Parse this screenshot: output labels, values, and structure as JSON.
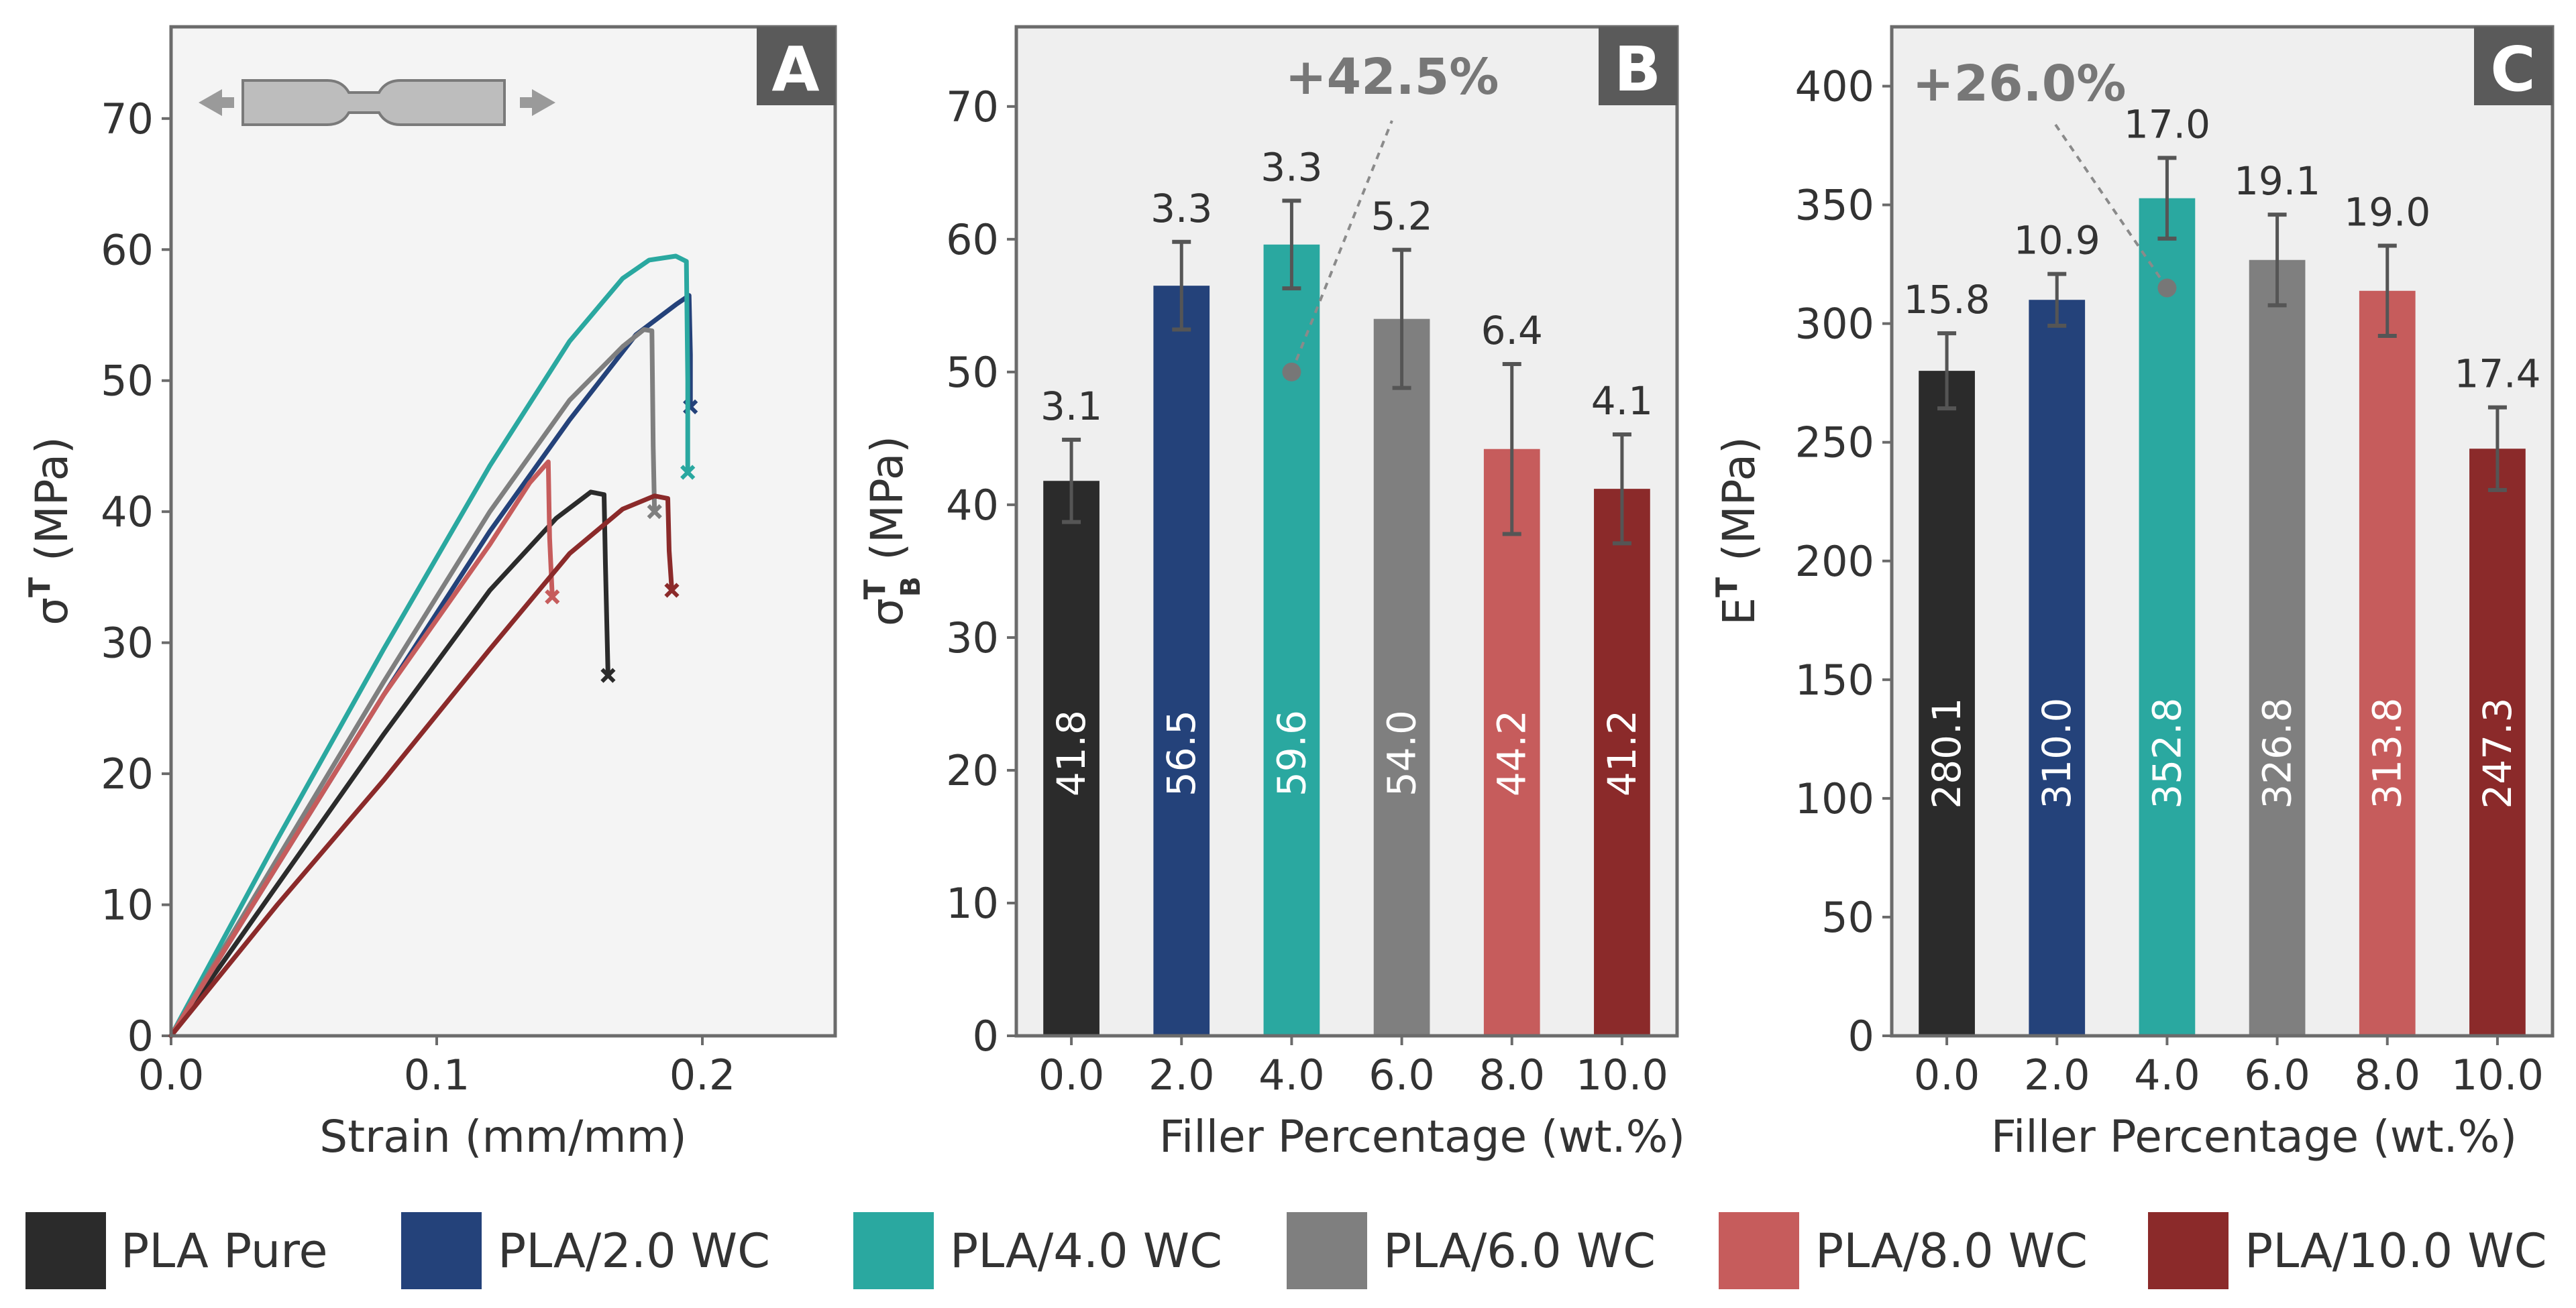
{
  "colors": {
    "pla_pure": "#2b2b2b",
    "pla_2": "#24427a",
    "pla_4": "#2aa8a0",
    "pla_6": "#7f7f7f",
    "pla_8": "#c65c5c",
    "pla_10": "#8b2a2a",
    "panel_bg_a": "#f4f4f4",
    "panel_bg_bc": "#efefef",
    "axis": "#6b6b6b",
    "text": "#333333",
    "annotation": "#777777"
  },
  "legend": [
    {
      "label": "PLA Pure",
      "color_key": "pla_pure"
    },
    {
      "label": "PLA/2.0 WC",
      "color_key": "pla_2"
    },
    {
      "label": "PLA/4.0 WC",
      "color_key": "pla_4"
    },
    {
      "label": "PLA/6.0 WC",
      "color_key": "pla_6"
    },
    {
      "label": "PLA/8.0 WC",
      "color_key": "pla_8"
    },
    {
      "label": "PLA/10.0 WC",
      "color_key": "pla_10"
    }
  ],
  "chart_data": [
    {
      "panel_label": "A",
      "type": "line",
      "xlabel": "Strain (mm/mm)",
      "ylabel_main": "σ",
      "ylabel_sup": "T",
      "ylabel_sub": "",
      "ylabel_unit": "(MPa)",
      "xlim": [
        0,
        0.25
      ],
      "ylim": [
        0,
        77
      ],
      "xticks": [
        0.0,
        0.1,
        0.2
      ],
      "xtick_labels": [
        "0.0",
        "0.1",
        "0.2"
      ],
      "yticks": [
        0,
        10,
        20,
        30,
        40,
        50,
        60,
        70
      ],
      "ytick_labels": [
        "0",
        "10",
        "20",
        "30",
        "40",
        "50",
        "60",
        "70"
      ],
      "series": [
        {
          "color_key": "pla_pure",
          "points": [
            [
              0,
              0
            ],
            [
              0.04,
              11.5
            ],
            [
              0.08,
              23
            ],
            [
              0.12,
              34
            ],
            [
              0.145,
              39.5
            ],
            [
              0.158,
              41.5
            ],
            [
              0.163,
              41.3
            ],
            [
              0.1635,
              36
            ],
            [
              0.1645,
              27.5
            ]
          ],
          "break": [
            0.1645,
            27.5
          ]
        },
        {
          "color_key": "pla_2",
          "points": [
            [
              0,
              0
            ],
            [
              0.04,
              13
            ],
            [
              0.08,
              26
            ],
            [
              0.12,
              38.5
            ],
            [
              0.15,
              47
            ],
            [
              0.175,
              53.5
            ],
            [
              0.19,
              55.8
            ],
            [
              0.195,
              56.5
            ],
            [
              0.1955,
              52
            ],
            [
              0.1955,
              48
            ]
          ],
          "break": [
            0.1955,
            48
          ]
        },
        {
          "color_key": "pla_4",
          "points": [
            [
              0,
              0
            ],
            [
              0.04,
              15
            ],
            [
              0.08,
              29.5
            ],
            [
              0.12,
              43.5
            ],
            [
              0.15,
              53
            ],
            [
              0.17,
              57.8
            ],
            [
              0.18,
              59.2
            ],
            [
              0.19,
              59.5
            ],
            [
              0.194,
              59.1
            ],
            [
              0.1945,
              50
            ],
            [
              0.1945,
              43
            ]
          ],
          "break": [
            0.1945,
            43
          ]
        },
        {
          "color_key": "pla_6",
          "points": [
            [
              0,
              0
            ],
            [
              0.04,
              13.5
            ],
            [
              0.08,
              27
            ],
            [
              0.12,
              40
            ],
            [
              0.15,
              48.5
            ],
            [
              0.17,
              52.6
            ],
            [
              0.178,
              53.9
            ],
            [
              0.181,
              53.8
            ],
            [
              0.1815,
              45
            ],
            [
              0.182,
              40
            ]
          ],
          "break": [
            0.182,
            40
          ]
        },
        {
          "color_key": "pla_8",
          "points": [
            [
              0,
              0
            ],
            [
              0.04,
              13
            ],
            [
              0.08,
              26
            ],
            [
              0.12,
              37.5
            ],
            [
              0.135,
              42.2
            ],
            [
              0.142,
              43.8
            ],
            [
              0.1425,
              38
            ],
            [
              0.1435,
              33.5
            ]
          ],
          "break": [
            0.1435,
            33.5
          ]
        },
        {
          "color_key": "pla_10",
          "points": [
            [
              0,
              0
            ],
            [
              0.04,
              10
            ],
            [
              0.08,
              19.5
            ],
            [
              0.12,
              29.5
            ],
            [
              0.15,
              36.8
            ],
            [
              0.17,
              40.2
            ],
            [
              0.182,
              41.2
            ],
            [
              0.187,
              41
            ],
            [
              0.1875,
              37
            ],
            [
              0.1885,
              34
            ]
          ],
          "break": [
            0.1885,
            34
          ]
        }
      ]
    },
    {
      "panel_label": "B",
      "type": "bar",
      "xlabel": "Filler Percentage (wt.%)",
      "ylabel_main": "σ",
      "ylabel_sup": "T",
      "ylabel_sub": "B",
      "ylabel_unit": "(MPa)",
      "ylim": [
        0,
        76
      ],
      "yticks": [
        0,
        10,
        20,
        30,
        40,
        50,
        60,
        70
      ],
      "ytick_labels": [
        "0",
        "10",
        "20",
        "30",
        "40",
        "50",
        "60",
        "70"
      ],
      "categories": [
        "0.0",
        "2.0",
        "4.0",
        "6.0",
        "8.0",
        "10.0"
      ],
      "values": [
        41.8,
        56.5,
        59.6,
        54.0,
        44.2,
        41.2
      ],
      "value_labels": [
        "41.8",
        "56.5",
        "59.6",
        "54.0",
        "44.2",
        "41.2"
      ],
      "errors": [
        3.1,
        3.3,
        3.3,
        5.2,
        6.4,
        4.1
      ],
      "error_labels": [
        "3.1",
        "3.3",
        "3.3",
        "5.2",
        "6.4",
        "4.1"
      ],
      "bar_color_keys": [
        "pla_pure",
        "pla_2",
        "pla_4",
        "pla_6",
        "pla_8",
        "pla_10"
      ],
      "annotation": {
        "text": "+42.5%",
        "category_index": 2,
        "marker_value": 50
      },
      "annotation_text": "+42.5%"
    },
    {
      "panel_label": "C",
      "type": "bar",
      "xlabel": "Filler Percentage (wt.%)",
      "ylabel_main": "E",
      "ylabel_sup": "T",
      "ylabel_sub": "",
      "ylabel_unit": "(MPa)",
      "ylim": [
        0,
        425
      ],
      "yticks": [
        0,
        50,
        100,
        150,
        200,
        250,
        300,
        350,
        400
      ],
      "ytick_labels": [
        "0",
        "50",
        "100",
        "150",
        "200",
        "250",
        "300",
        "350",
        "400"
      ],
      "categories": [
        "0.0",
        "2.0",
        "4.0",
        "6.0",
        "8.0",
        "10.0"
      ],
      "values": [
        280.1,
        310.0,
        352.8,
        326.8,
        313.8,
        247.3
      ],
      "value_labels": [
        "280.1",
        "310.0",
        "352.8",
        "326.8",
        "313.8",
        "247.3"
      ],
      "errors": [
        15.8,
        10.9,
        17.0,
        19.1,
        19.0,
        17.4
      ],
      "error_labels": [
        "15.8",
        "10.9",
        "17.0",
        "19.1",
        "19.0",
        "17.4"
      ],
      "bar_color_keys": [
        "pla_pure",
        "pla_2",
        "pla_4",
        "pla_6",
        "pla_8",
        "pla_10"
      ],
      "annotation": {
        "text": "+26.0%",
        "category_index": 2,
        "marker_value": 315
      },
      "annotation_text": "+26.0%"
    }
  ]
}
